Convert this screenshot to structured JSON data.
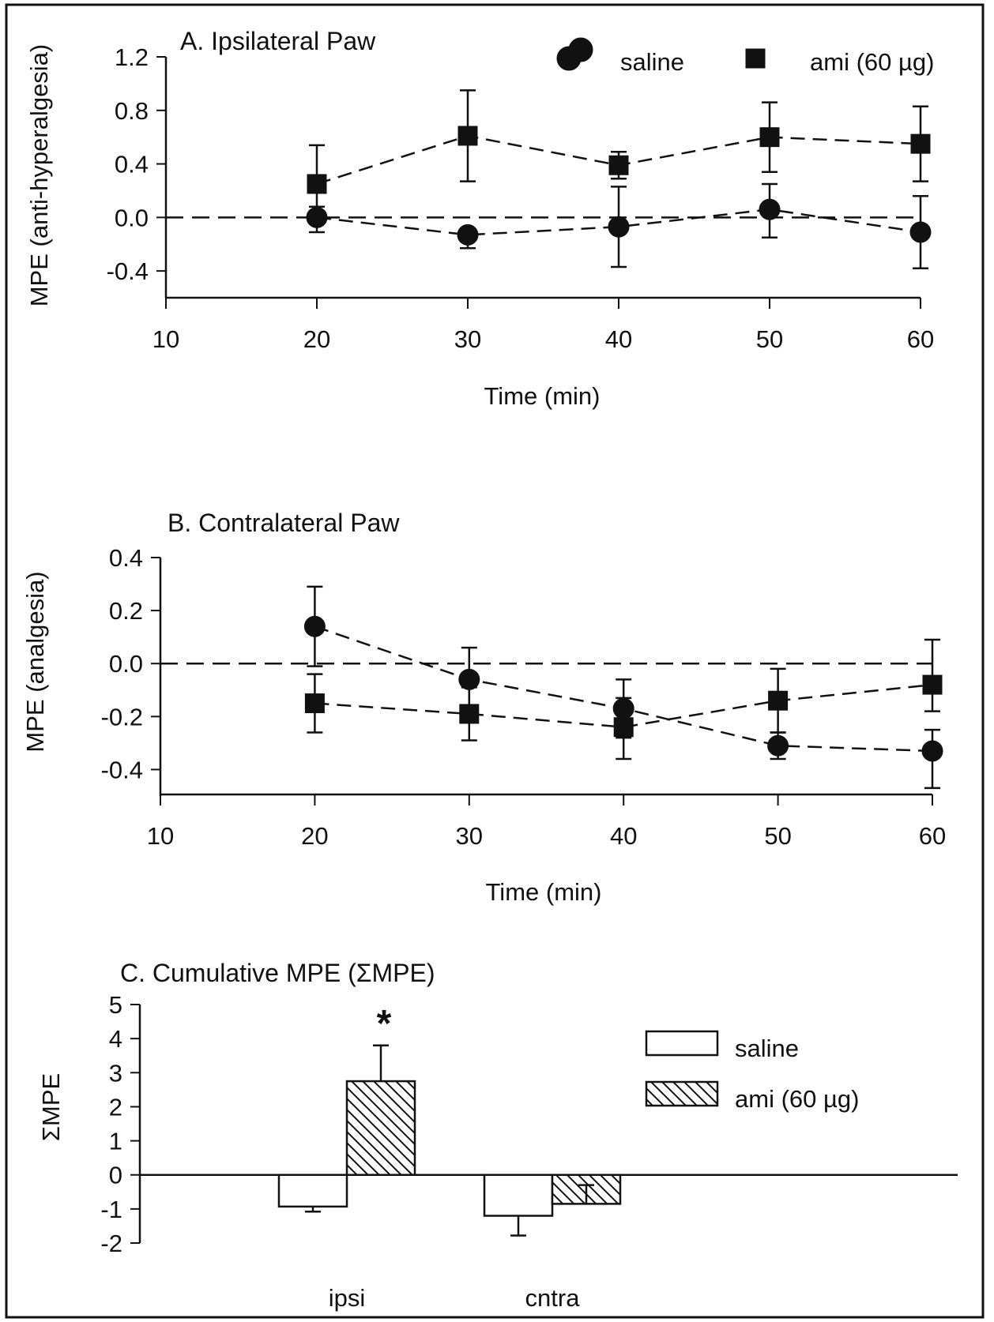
{
  "chart_data": [
    {
      "type": "line",
      "title": "A.  Ipsilateral Paw",
      "xlabel": "Time (min)",
      "ylabel": "MPE (anti-hyperalgesia)",
      "xlim": [
        10,
        60
      ],
      "ylim": [
        -0.6,
        1.2
      ],
      "xticks": [
        "10",
        "20",
        "30",
        "40",
        "50",
        "60"
      ],
      "yticks": [
        "1.2",
        "0.8",
        "0.4",
        "0.0",
        "-0.4"
      ],
      "reference_line": 0.0,
      "legend_position": "top-right",
      "x": [
        20,
        30,
        40,
        50,
        60
      ],
      "series": [
        {
          "name": "saline",
          "marker": "circle",
          "values": [
            0.0,
            -0.13,
            -0.07,
            0.06,
            -0.11
          ],
          "err_upper": [
            0.08,
            0.03,
            0.3,
            0.19,
            0.27
          ],
          "err_lower": [
            0.11,
            0.1,
            0.3,
            0.21,
            0.27
          ]
        },
        {
          "name": "ami (60 µg)",
          "marker": "square",
          "values": [
            0.25,
            0.61,
            0.39,
            0.6,
            0.55
          ],
          "err_upper": [
            0.29,
            0.34,
            0.1,
            0.26,
            0.28
          ],
          "err_lower": [
            0.29,
            0.34,
            0.1,
            0.26,
            0.28
          ]
        }
      ]
    },
    {
      "type": "line",
      "title": "B.  Contralateral Paw",
      "xlabel": "Time (min)",
      "ylabel": "MPE (analgesia)",
      "xlim": [
        10,
        60
      ],
      "ylim": [
        -0.5,
        0.4
      ],
      "xticks": [
        "10",
        "20",
        "30",
        "40",
        "50",
        "60"
      ],
      "yticks": [
        "0.4",
        "0.2",
        "0.0",
        "-0.2",
        "-0.4"
      ],
      "reference_line": 0.0,
      "x": [
        20,
        30,
        40,
        50,
        60
      ],
      "series": [
        {
          "name": "saline",
          "marker": "circle",
          "values": [
            0.14,
            -0.06,
            -0.17,
            -0.31,
            -0.33
          ],
          "err_upper": [
            0.15,
            0.12,
            0.11,
            0.05,
            0.08
          ],
          "err_lower": [
            0.15,
            0.12,
            0.11,
            0.05,
            0.14
          ]
        },
        {
          "name": "ami (60 µg)",
          "marker": "square",
          "values": [
            -0.15,
            -0.19,
            -0.24,
            -0.14,
            -0.08
          ],
          "err_upper": [
            0.11,
            0.1,
            0.11,
            0.12,
            0.17
          ],
          "err_lower": [
            0.11,
            0.1,
            0.12,
            0.12,
            0.1
          ]
        }
      ]
    },
    {
      "type": "bar",
      "title": "C.  Cumulative MPE (ΣMPE)",
      "xlabel": "",
      "ylabel": "ΣMPE",
      "ylim": [
        -2,
        5
      ],
      "yticks": [
        "5",
        "4",
        "3",
        "2",
        "1",
        "0",
        "-1",
        "-2"
      ],
      "categories": [
        "ipsi",
        "cntra"
      ],
      "legend_position": "right",
      "annotation": "*",
      "series": [
        {
          "name": "saline",
          "pattern": "open",
          "values": [
            -0.93,
            -1.2
          ],
          "err_lower": [
            0.15,
            0.58
          ]
        },
        {
          "name": "ami (60 µg)",
          "pattern": "hatched",
          "values": [
            2.75,
            -0.85
          ],
          "err_upper": [
            1.05,
            0.55
          ]
        }
      ]
    }
  ]
}
